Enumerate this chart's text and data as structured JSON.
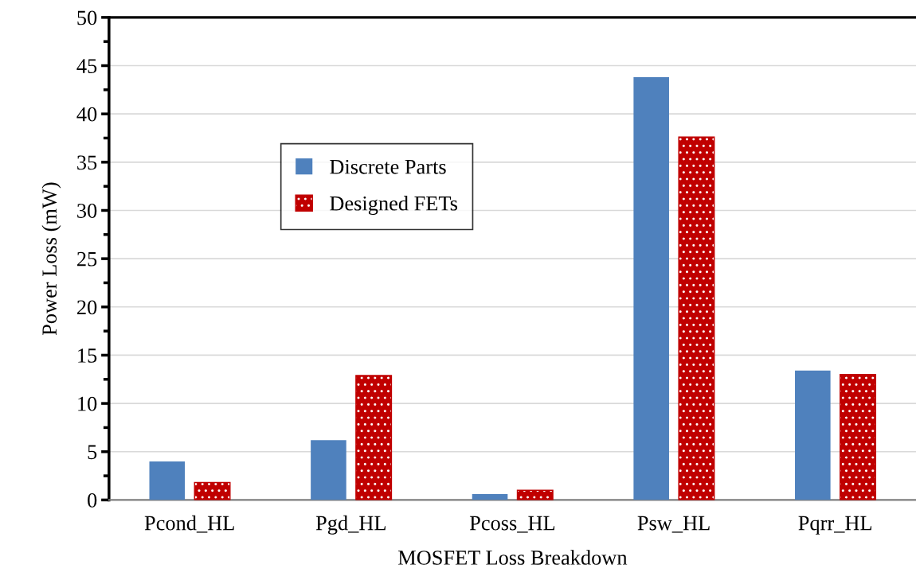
{
  "chart_data": {
    "type": "bar",
    "xlabel": "MOSFET Loss Breakdown",
    "ylabel": "Power Loss (mW)",
    "categories": [
      "Pcond_HL",
      "Pgd_HL",
      "Pcoss_HL",
      "Psw_HL",
      "Pqrr_HL"
    ],
    "series": [
      {
        "name": "Discrete Parts",
        "color": "#4f81bd",
        "values": [
          4.0,
          6.2,
          0.6,
          43.8,
          13.4
        ]
      },
      {
        "name": "Designed FETs",
        "color": "#c00000",
        "values": [
          1.8,
          12.9,
          1.0,
          37.6,
          13.0
        ]
      }
    ],
    "ylim": [
      0,
      50
    ],
    "yticks": [
      0,
      5,
      10,
      15,
      20,
      25,
      30,
      35,
      40,
      45,
      50
    ],
    "grid": "y",
    "legend": "top left"
  }
}
